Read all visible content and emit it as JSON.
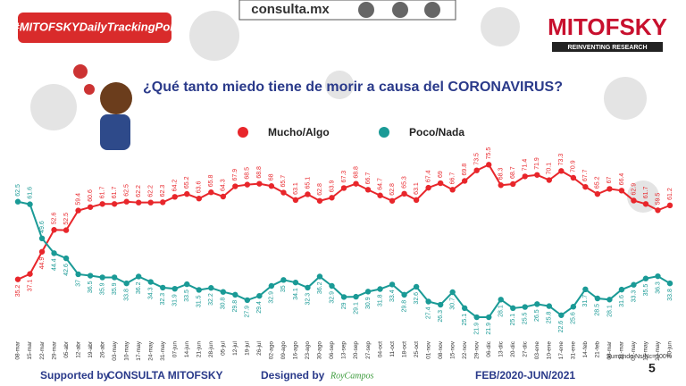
{
  "header": {
    "hashtag": "#MITOFSKYDailyTrackingPoll",
    "site": "consulta.mx",
    "brand": "MITOFSKY",
    "tagline": "REINVENTING RESEARCH"
  },
  "chart_data": {
    "type": "line",
    "title": "¿Qué tanto miedo tiene de morir a causa del CORONAVIRUS?",
    "categories": [
      "08-mar",
      "15-mar",
      "22-mar",
      "29-mar",
      "05-abr",
      "12-abr",
      "19-abr",
      "26-abr",
      "03-may",
      "10-may",
      "17-may",
      "24-may",
      "31-may",
      "07-jun",
      "14-jun",
      "21-jun",
      "28-jun",
      "05-jul",
      "12-jul",
      "19-jul",
      "26-jul",
      "02-ago",
      "09-ago",
      "16-ago",
      "23-ago",
      "30-ago",
      "06-sep",
      "13-sep",
      "20-sep",
      "27-sep",
      "04-oct",
      "11-oct",
      "18-oct",
      "25-oct",
      "01-nov",
      "08-nov",
      "15-nov",
      "22-nov",
      "29-nov",
      "06-dic",
      "13-dic",
      "20-dic",
      "27-dic",
      "03-ene",
      "10-ene",
      "17-ene",
      "31-ene",
      "14-feb",
      "21-feb",
      "08-mar",
      "21-mar",
      "02-may",
      "16-may",
      "23-may",
      "20-jun"
    ],
    "series": [
      {
        "name": "Mucho/Algo",
        "color": "#e8262b",
        "values": [
          35.2,
          37.1,
          44.9,
          52.6,
          52.5,
          59.4,
          60.6,
          61.7,
          61.7,
          62.5,
          62.2,
          62.2,
          62.3,
          64.2,
          65.2,
          63.6,
          65.8,
          64.3,
          67.9,
          68.5,
          68.8,
          68.0,
          65.7,
          63.1,
          65.1,
          62.8,
          63.9,
          67.3,
          68.8,
          66.7,
          64.7,
          62.8,
          65.3,
          63.1,
          67.4,
          69.0,
          66.7,
          69.8,
          73.5,
          75.5,
          68.3,
          68.7,
          71.4,
          71.9,
          70.1,
          73.3,
          70.9,
          67.7,
          65.2,
          67.0,
          66.4,
          62.9,
          61.7,
          59.5,
          61.2
        ]
      },
      {
        "name": "Poco/Nada",
        "color": "#1a9a96",
        "values": [
          62.5,
          61.6,
          49.6,
          44.4,
          42.6,
          37.0,
          36.5,
          35.9,
          35.9,
          33.8,
          36.2,
          34.3,
          32.3,
          31.9,
          33.5,
          31.5,
          32.2,
          30.8,
          29.8,
          27.9,
          29.4,
          32.9,
          35.0,
          34.1,
          32.3,
          36.2,
          32.9,
          29.0,
          29.1,
          30.9,
          31.8,
          33.4,
          29.8,
          32.6,
          27.4,
          26.3,
          30.7,
          25.1,
          21.9,
          21.9,
          28.1,
          25.1,
          25.5,
          26.5,
          25.8,
          22.6,
          25.6,
          31.7,
          28.5,
          28.1,
          31.6,
          33.3,
          35.5,
          36.3,
          33.8
        ]
      }
    ],
    "ylim": [
      15,
      80
    ],
    "note": "Sumando Ns/Nc=100%"
  },
  "footer": {
    "supported": "Supported by",
    "sponsor": "CONSULTA  MITOFSKY",
    "designed": "Designed by",
    "designer": "RoyCampos",
    "period": "FEB/2020-JUN/2021",
    "page": "5"
  }
}
